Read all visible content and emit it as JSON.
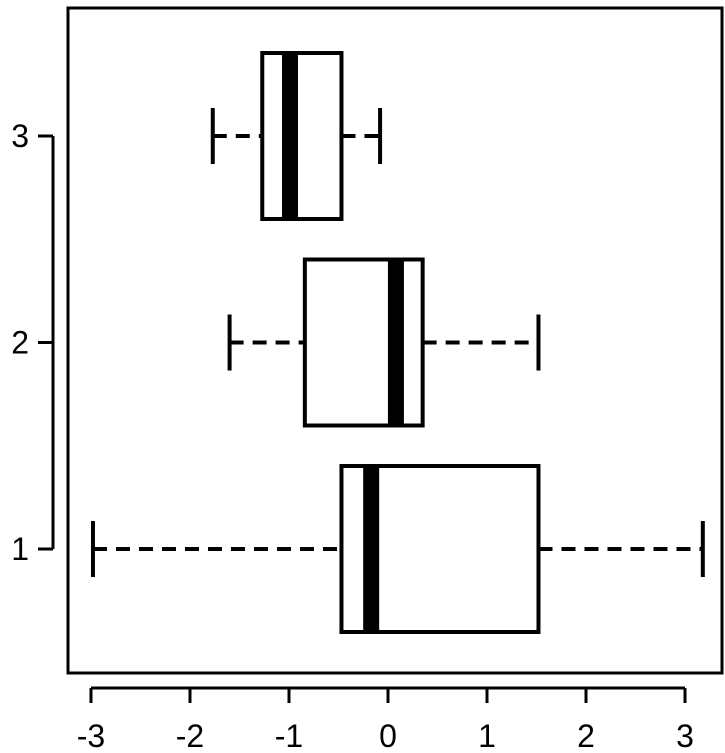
{
  "chart_data": {
    "type": "boxplot",
    "orientation": "horizontal",
    "title": "",
    "xlabel": "",
    "ylabel": "",
    "xlim": [
      -3.2,
      3.3
    ],
    "ylim": [
      0.4,
      3.6
    ],
    "grid": false,
    "x_ticks": [
      "-3",
      "-2",
      "-1",
      "0",
      "1",
      "2",
      "3"
    ],
    "y_ticks": [
      "1",
      "2",
      "3"
    ],
    "boxes": [
      {
        "group": "1",
        "whisker_low": -2.98,
        "q1": -0.47,
        "median": -0.17,
        "q3": 1.52,
        "whisker_high": 3.18
      },
      {
        "group": "2",
        "whisker_low": -1.6,
        "q1": -0.84,
        "median": 0.08,
        "q3": 0.35,
        "whisker_high": 1.52
      },
      {
        "group": "3",
        "whisker_low": -1.77,
        "q1": -1.27,
        "median": -0.99,
        "q3": -0.47,
        "whisker_high": -0.08
      }
    ],
    "colors": {
      "stroke": "#000000",
      "fill": "#ffffff"
    }
  }
}
